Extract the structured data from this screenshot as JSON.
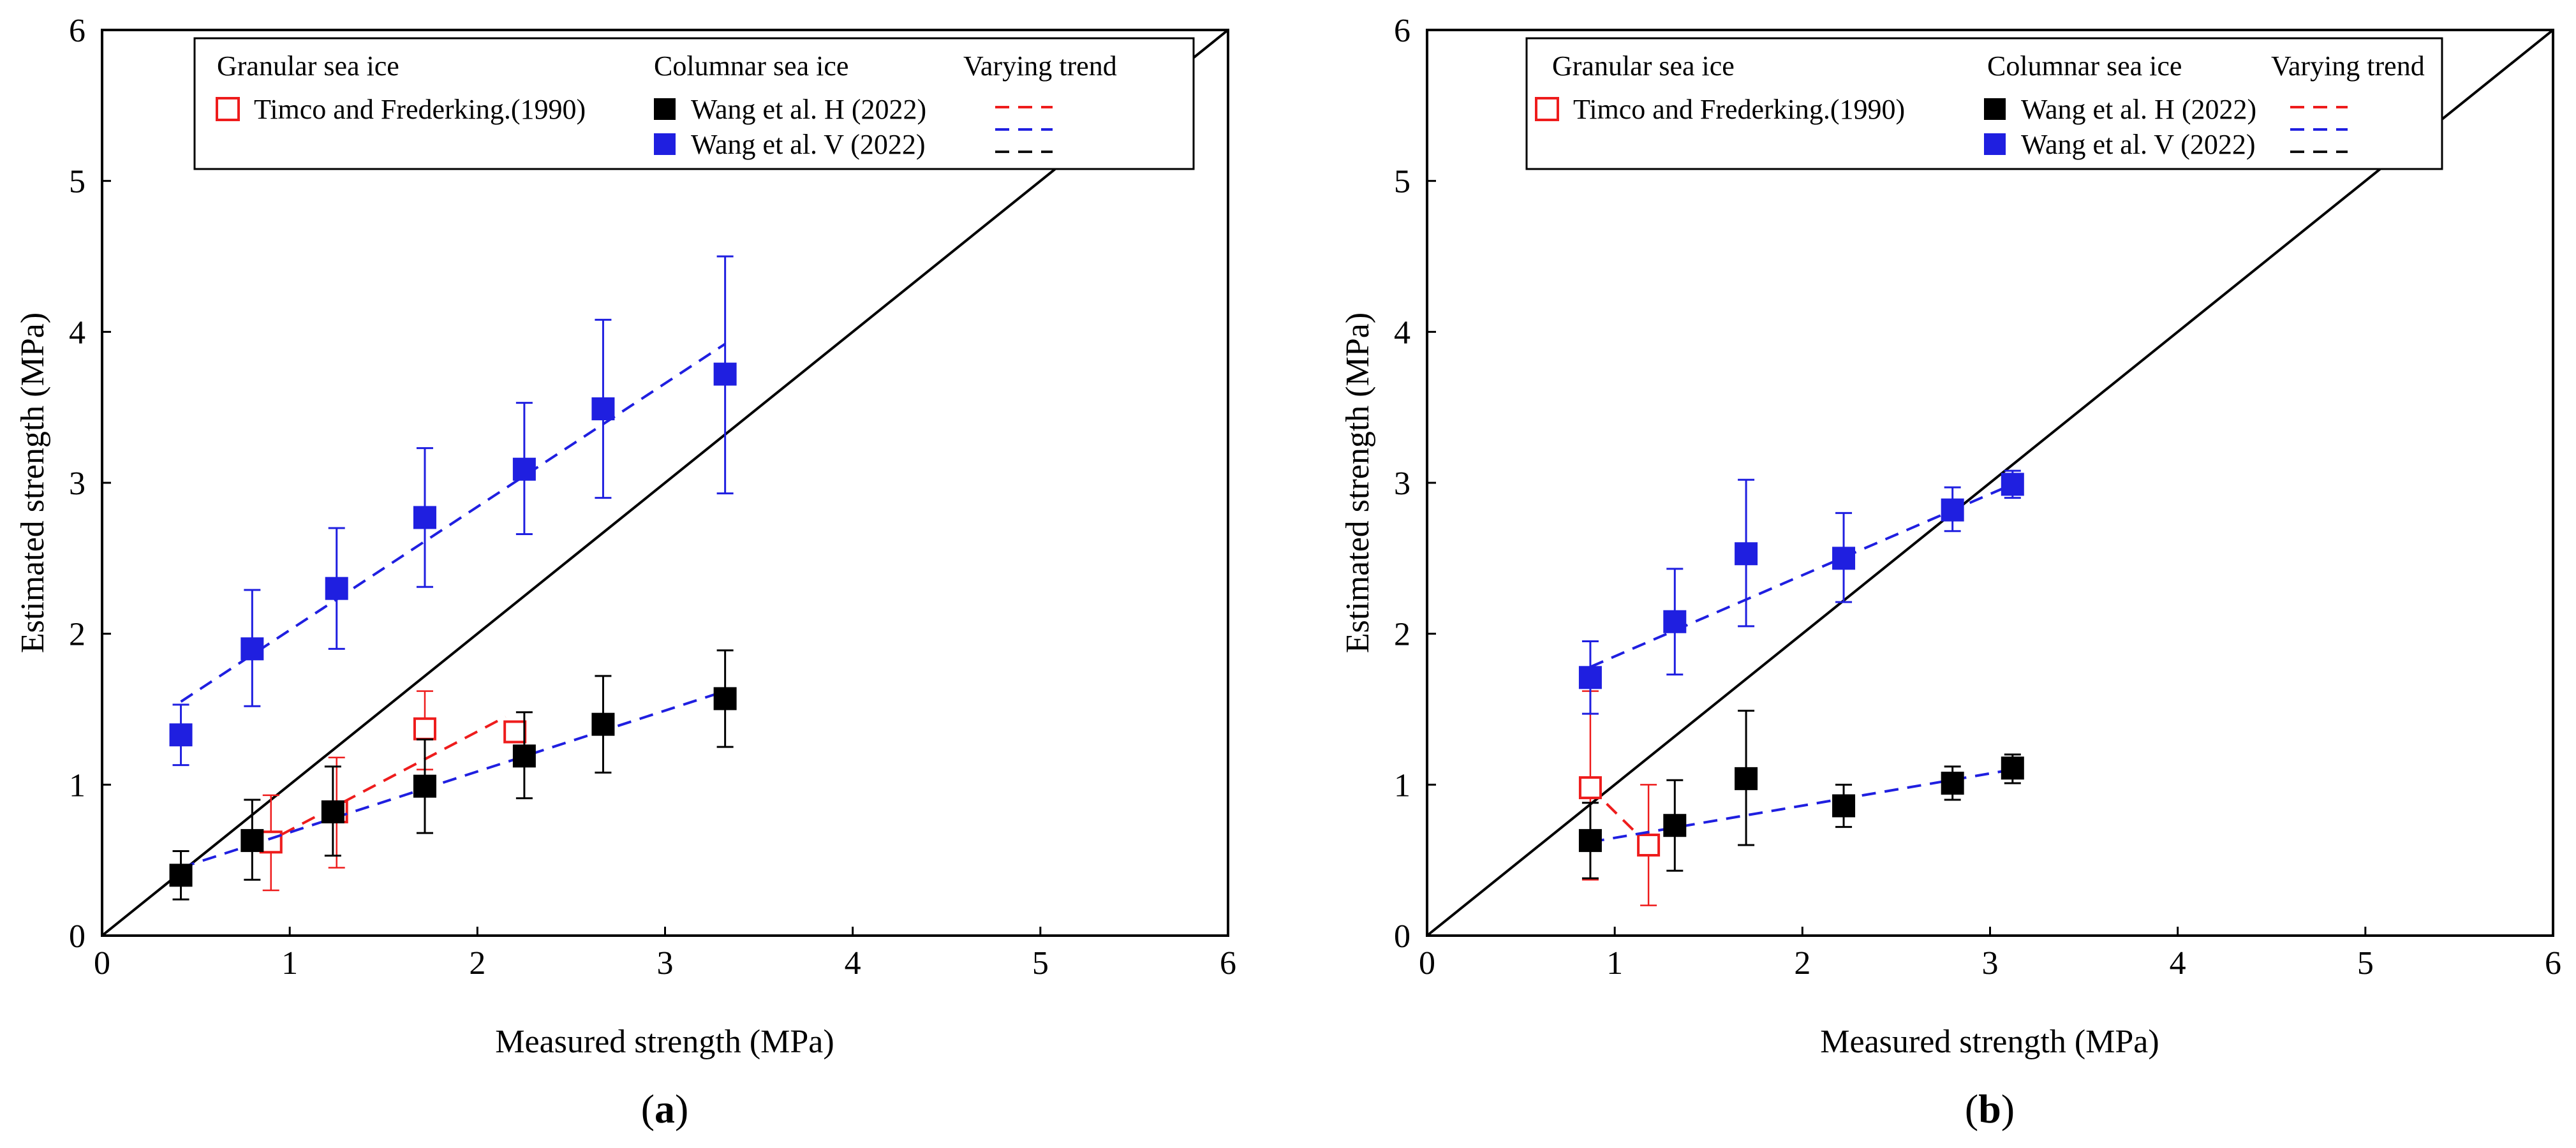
{
  "chart_data": [
    {
      "type": "scatter",
      "panel_label": "a",
      "xlabel": "Measured strength (MPa)",
      "ylabel": "Estimated strength (MPa)",
      "xlim": [
        0,
        6
      ],
      "ylim": [
        0,
        6
      ],
      "xticks": [
        "0",
        "1",
        "2",
        "3",
        "4",
        "5",
        "6"
      ],
      "yticks": [
        "0",
        "1",
        "2",
        "3",
        "4",
        "5",
        "6"
      ],
      "reference_line": {
        "x": [
          0,
          6
        ],
        "y": [
          0,
          6
        ]
      },
      "legend": {
        "headers": [
          "Granular sea ice",
          "Columnar sea ice",
          "Varying trend"
        ],
        "entries": [
          "Timco and Frederking.(1990)",
          "Wang et al. H (2022)",
          "Wang et al. V (2022)"
        ],
        "trend_colors": [
          "#ee1c1c",
          "#1f1fe0",
          "#111111"
        ]
      },
      "series": [
        {
          "name": "Timco and Frederking.(1990)",
          "marker": "open-square",
          "color": "#ee1c1c",
          "points": [
            {
              "x": 0.9,
              "y": 0.62,
              "lo": 0.3,
              "hi": 0.93
            },
            {
              "x": 1.25,
              "y": 0.82,
              "lo": 0.45,
              "hi": 1.18
            },
            {
              "x": 1.72,
              "y": 1.37,
              "lo": 1.1,
              "hi": 1.62
            },
            {
              "x": 2.2,
              "y": 1.35,
              "lo": 1.28,
              "hi": 1.42
            }
          ],
          "trend": {
            "x": [
              0.85,
              2.15
            ],
            "y": [
              0.6,
              1.45
            ]
          }
        },
        {
          "name": "Wang et al. H (2022)",
          "marker": "filled-square",
          "color": "#000000",
          "points": [
            {
              "x": 0.42,
              "y": 0.4,
              "lo": 0.24,
              "hi": 0.56
            },
            {
              "x": 0.8,
              "y": 0.63,
              "lo": 0.37,
              "hi": 0.9
            },
            {
              "x": 1.23,
              "y": 0.82,
              "lo": 0.53,
              "hi": 1.12
            },
            {
              "x": 1.72,
              "y": 0.99,
              "lo": 0.68,
              "hi": 1.3
            },
            {
              "x": 2.25,
              "y": 1.19,
              "lo": 0.91,
              "hi": 1.48
            },
            {
              "x": 2.67,
              "y": 1.4,
              "lo": 1.08,
              "hi": 1.72
            },
            {
              "x": 3.32,
              "y": 1.57,
              "lo": 1.25,
              "hi": 1.89
            }
          ],
          "trend": {
            "x": [
              0.42,
              3.32
            ],
            "y": [
              0.45,
              1.62
            ]
          }
        },
        {
          "name": "Wang et al. V (2022)",
          "marker": "filled-square",
          "color": "#1f1fe0",
          "points": [
            {
              "x": 0.42,
              "y": 1.33,
              "lo": 1.13,
              "hi": 1.53
            },
            {
              "x": 0.8,
              "y": 1.9,
              "lo": 1.52,
              "hi": 2.29
            },
            {
              "x": 1.25,
              "y": 2.3,
              "lo": 1.9,
              "hi": 2.7
            },
            {
              "x": 1.72,
              "y": 2.77,
              "lo": 2.31,
              "hi": 3.23
            },
            {
              "x": 2.25,
              "y": 3.09,
              "lo": 2.66,
              "hi": 3.53
            },
            {
              "x": 2.67,
              "y": 3.49,
              "lo": 2.9,
              "hi": 4.08
            },
            {
              "x": 3.32,
              "y": 3.72,
              "lo": 2.93,
              "hi": 4.5
            }
          ],
          "trend": {
            "x": [
              0.42,
              3.32
            ],
            "y": [
              1.55,
              3.92
            ]
          }
        }
      ]
    },
    {
      "type": "scatter",
      "panel_label": "b",
      "xlabel": "Measured strength (MPa)",
      "ylabel": "Estimated strength (MPa)",
      "xlim": [
        0,
        6
      ],
      "ylim": [
        0,
        6
      ],
      "xticks": [
        "0",
        "1",
        "2",
        "3",
        "4",
        "5",
        "6"
      ],
      "yticks": [
        "0",
        "1",
        "2",
        "3",
        "4",
        "5",
        "6"
      ],
      "reference_line": {
        "x": [
          0,
          6
        ],
        "y": [
          0,
          6
        ]
      },
      "legend": {
        "headers": [
          "Granular sea ice",
          "Columnar sea ice",
          "Varying trend"
        ],
        "entries": [
          "Timco and Frederking.(1990)",
          "Wang et al. H (2022)",
          "Wang et al. V (2022)"
        ],
        "trend_colors": [
          "#ee1c1c",
          "#1f1fe0",
          "#111111"
        ]
      },
      "series": [
        {
          "name": "Timco and Frederking.(1990)",
          "marker": "open-square",
          "color": "#ee1c1c",
          "points": [
            {
              "x": 0.87,
              "y": 0.98,
              "lo": 0.37,
              "hi": 1.62
            },
            {
              "x": 1.18,
              "y": 0.6,
              "lo": 0.2,
              "hi": 1.0
            }
          ],
          "trend": {
            "x": [
              0.87,
              1.18
            ],
            "y": [
              0.98,
              0.6
            ]
          }
        },
        {
          "name": "Wang et al. H (2022)",
          "marker": "filled-square",
          "color": "#000000",
          "points": [
            {
              "x": 0.87,
              "y": 0.63,
              "lo": 0.38,
              "hi": 0.88
            },
            {
              "x": 1.32,
              "y": 0.73,
              "lo": 0.43,
              "hi": 1.03
            },
            {
              "x": 1.7,
              "y": 1.04,
              "lo": 0.6,
              "hi": 1.49
            },
            {
              "x": 2.22,
              "y": 0.86,
              "lo": 0.72,
              "hi": 1.0
            },
            {
              "x": 2.8,
              "y": 1.01,
              "lo": 0.9,
              "hi": 1.12
            },
            {
              "x": 3.12,
              "y": 1.11,
              "lo": 1.01,
              "hi": 1.2
            }
          ],
          "trend": {
            "x": [
              0.87,
              3.12
            ],
            "y": [
              0.62,
              1.1
            ]
          }
        },
        {
          "name": "Wang et al. V (2022)",
          "marker": "filled-square",
          "color": "#1f1fe0",
          "points": [
            {
              "x": 0.87,
              "y": 1.71,
              "lo": 1.47,
              "hi": 1.95
            },
            {
              "x": 1.32,
              "y": 2.08,
              "lo": 1.73,
              "hi": 2.43
            },
            {
              "x": 1.7,
              "y": 2.53,
              "lo": 2.05,
              "hi": 3.02
            },
            {
              "x": 2.22,
              "y": 2.5,
              "lo": 2.21,
              "hi": 2.8
            },
            {
              "x": 2.8,
              "y": 2.82,
              "lo": 2.68,
              "hi": 2.97
            },
            {
              "x": 3.12,
              "y": 2.99,
              "lo": 2.9,
              "hi": 3.08
            }
          ],
          "trend": {
            "x": [
              0.87,
              3.12
            ],
            "y": [
              1.78,
              2.99
            ]
          }
        }
      ]
    }
  ]
}
